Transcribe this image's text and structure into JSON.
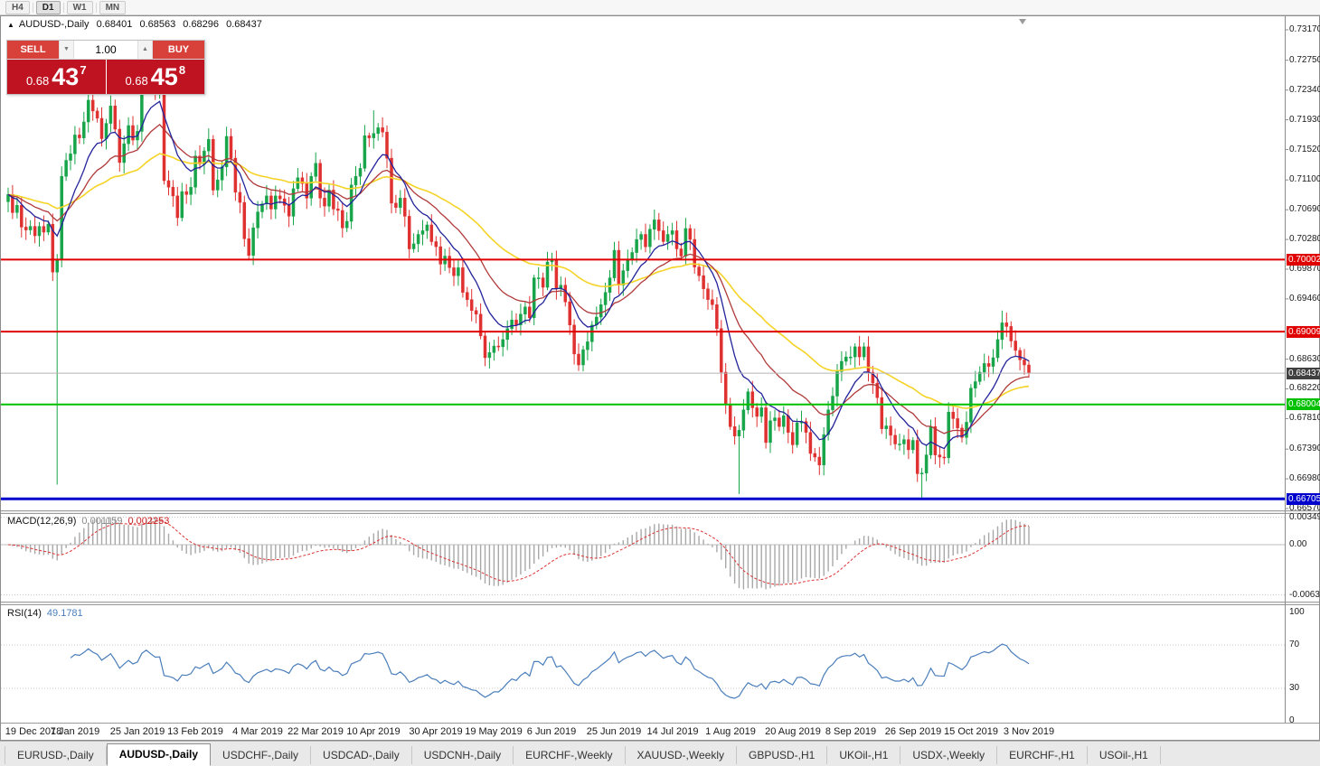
{
  "toolbar": {
    "timeframes": [
      "H4",
      "D1",
      "W1",
      "MN"
    ],
    "active": "D1"
  },
  "header": {
    "arrow": "▲",
    "symbol": "AUDUSD-,Daily",
    "open": "0.68401",
    "high": "0.68563",
    "low": "0.68296",
    "close": "0.68437"
  },
  "trade": {
    "sell_label": "SELL",
    "buy_label": "BUY",
    "lot": "1.00",
    "spin_down": "▼",
    "spin_up": "▲",
    "bid": {
      "prefix": "0.68",
      "big": "43",
      "sup": "7"
    },
    "ask": {
      "prefix": "0.68",
      "big": "45",
      "sup": "8"
    }
  },
  "macd": {
    "title": "MACD(12,26,9)",
    "v1": "0.001159",
    "v2": "0.002253"
  },
  "rsi": {
    "title": "RSI(14)",
    "value": "49.1781"
  },
  "tabs": [
    {
      "label": "EURUSD-,Daily",
      "active": false
    },
    {
      "label": "AUDUSD-,Daily",
      "active": true
    },
    {
      "label": "USDCHF-,Daily",
      "active": false
    },
    {
      "label": "USDCAD-,Daily",
      "active": false
    },
    {
      "label": "USDCNH-,Daily",
      "active": false
    },
    {
      "label": "EURCHF-,Weekly",
      "active": false
    },
    {
      "label": "XAUUSD-,Weekly",
      "active": false
    },
    {
      "label": "GBPUSD-,H1",
      "active": false
    },
    {
      "label": "UKOil-,H1",
      "active": false
    },
    {
      "label": "USDX-,Weekly",
      "active": false
    },
    {
      "label": "EURCHF-,H1",
      "active": false
    },
    {
      "label": "USOil-,H1",
      "active": false
    }
  ],
  "chart_data": {
    "type": "candlestick",
    "title": "AUDUSD- Daily",
    "symbol": "AUDUSD-",
    "timeframe": "Daily",
    "ohlc_display": {
      "open": 0.68401,
      "high": 0.68563,
      "low": 0.68296,
      "close": 0.68437
    },
    "y_range": {
      "top": 0.7317,
      "bottom": 0.6657
    },
    "first_open": 0.708,
    "closes": [
      0.709,
      0.7065,
      0.7075,
      0.7045,
      0.7041,
      0.7046,
      0.7033,
      0.7046,
      0.7038,
      0.7049,
      0.6983,
      0.7,
      0.7115,
      0.7137,
      0.7146,
      0.7172,
      0.7168,
      0.719,
      0.722,
      0.7205,
      0.7195,
      0.7167,
      0.7188,
      0.7212,
      0.718,
      0.7134,
      0.716,
      0.7185,
      0.7165,
      0.7177,
      0.7243,
      0.7272,
      0.7253,
      0.7235,
      0.7237,
      0.7109,
      0.71,
      0.7088,
      0.7058,
      0.7094,
      0.709,
      0.71,
      0.7143,
      0.7132,
      0.715,
      0.7166,
      0.7096,
      0.711,
      0.7128,
      0.717,
      0.714,
      0.7093,
      0.7079,
      0.7029,
      0.7006,
      0.7044,
      0.7066,
      0.7077,
      0.7088,
      0.707,
      0.7088,
      0.7084,
      0.7075,
      0.706,
      0.7098,
      0.7113,
      0.7105,
      0.7085,
      0.7115,
      0.7133,
      0.7085,
      0.7074,
      0.7096,
      0.707,
      0.7068,
      0.7044,
      0.7053,
      0.7103,
      0.7115,
      0.7126,
      0.7171,
      0.7168,
      0.7174,
      0.7182,
      0.7176,
      0.714,
      0.7078,
      0.7072,
      0.7085,
      0.706,
      0.7015,
      0.7022,
      0.7035,
      0.704,
      0.7048,
      0.7025,
      0.7018,
      0.6994,
      0.7005,
      0.6989,
      0.6978,
      0.6989,
      0.6955,
      0.6945,
      0.693,
      0.6925,
      0.6895,
      0.6865,
      0.6872,
      0.6881,
      0.688,
      0.689,
      0.6905,
      0.6917,
      0.691,
      0.6925,
      0.6935,
      0.692,
      0.6975,
      0.6975,
      0.6962,
      0.6997,
      0.7,
      0.696,
      0.6965,
      0.6942,
      0.691,
      0.687,
      0.6855,
      0.6876,
      0.6887,
      0.691,
      0.6921,
      0.6938,
      0.6955,
      0.6975,
      0.7013,
      0.6965,
      0.6985,
      0.7,
      0.701,
      0.7028,
      0.7035,
      0.7018,
      0.7042,
      0.7055,
      0.704,
      0.7025,
      0.7035,
      0.704,
      0.7015,
      0.7005,
      0.7043,
      0.7028,
      0.699,
      0.6978,
      0.696,
      0.6945,
      0.6938,
      0.6905,
      0.6845,
      0.68,
      0.677,
      0.6757,
      0.6765,
      0.6793,
      0.6818,
      0.6796,
      0.6784,
      0.6796,
      0.6748,
      0.6778,
      0.6782,
      0.677,
      0.6785,
      0.6762,
      0.6745,
      0.6775,
      0.6777,
      0.6762,
      0.6733,
      0.6728,
      0.6717,
      0.6759,
      0.6793,
      0.6812,
      0.6846,
      0.686,
      0.6866,
      0.6866,
      0.688,
      0.6866,
      0.688,
      0.6845,
      0.683,
      0.681,
      0.6767,
      0.6771,
      0.6758,
      0.6746,
      0.6746,
      0.6752,
      0.6738,
      0.6751,
      0.6705,
      0.6706,
      0.6731,
      0.677,
      0.6731,
      0.6728,
      0.6727,
      0.679,
      0.6781,
      0.6768,
      0.6755,
      0.6776,
      0.6823,
      0.6832,
      0.6845,
      0.6857,
      0.6853,
      0.6865,
      0.689,
      0.6913,
      0.6908,
      0.6888,
      0.6875,
      0.6862,
      0.6855,
      0.68437
    ],
    "wick_overrides": [
      {
        "i": 11,
        "low": 0.669
      },
      {
        "i": 82,
        "high": 0.7206
      },
      {
        "i": 164,
        "low": 0.6677
      },
      {
        "i": 205,
        "low": 0.667
      },
      {
        "i": 223,
        "high": 0.693
      }
    ],
    "candle_colors": {
      "up": "#18a54a",
      "down": "#e03131"
    },
    "moving_averages": [
      {
        "period": 10,
        "color": "#23239b",
        "width": 1.3
      },
      {
        "period": 22,
        "color": "#b03a3a",
        "width": 1.3
      },
      {
        "period": 50,
        "color": "#f5d327",
        "width": 1.6
      }
    ],
    "levels": [
      {
        "price": 0.70002,
        "color": "#e00000",
        "width": 2,
        "label": "0.70002",
        "label_bg": "#e00000"
      },
      {
        "price": 0.69009,
        "color": "#e00000",
        "width": 2,
        "label": "0.69009",
        "label_bg": "#e00000"
      },
      {
        "price": 0.68437,
        "color": "#b4b4b4",
        "width": 1,
        "label": "0.68437",
        "label_bg": "#404040"
      },
      {
        "price": 0.68004,
        "color": "#00c000",
        "width": 2,
        "label": "0.68004",
        "label_bg": "#00c000"
      },
      {
        "price": 0.66705,
        "color": "#0000cd",
        "width": 3,
        "label": "0.66705",
        "label_bg": "#0000cd"
      }
    ],
    "y_ticks": [
      "0.73170",
      "0.72750",
      "0.72340",
      "0.71930",
      "0.71520",
      "0.71100",
      "0.70690",
      "0.70280",
      "0.69870",
      "0.69460",
      "0.68630",
      "0.68220",
      "0.67810",
      "0.67390",
      "0.66980",
      "0.66570"
    ],
    "x_labels": [
      {
        "text": "19 Dec 2018",
        "i": 2
      },
      {
        "text": "7 Jan 2019",
        "i": 15
      },
      {
        "text": "25 Jan 2019",
        "i": 29
      },
      {
        "text": "13 Feb 2019",
        "i": 42
      },
      {
        "text": "4 Mar 2019",
        "i": 56
      },
      {
        "text": "22 Mar 2019",
        "i": 69
      },
      {
        "text": "10 Apr 2019",
        "i": 82
      },
      {
        "text": "30 Apr 2019",
        "i": 96
      },
      {
        "text": "19 May 2019",
        "i": 109
      },
      {
        "text": "6 Jun 2019",
        "i": 122
      },
      {
        "text": "25 Jun 2019",
        "i": 136
      },
      {
        "text": "14 Jul 2019",
        "i": 149
      },
      {
        "text": "1 Aug 2019",
        "i": 162
      },
      {
        "text": "20 Aug 2019",
        "i": 176
      },
      {
        "text": "8 Sep 2019",
        "i": 189
      },
      {
        "text": "26 Sep 2019",
        "i": 203
      },
      {
        "text": "15 Oct 2019",
        "i": 216
      },
      {
        "text": "3 Nov 2019",
        "i": 229
      }
    ],
    "macd": {
      "params": [
        12,
        26,
        9
      ],
      "axis": [
        {
          "v": 0.00349,
          "text": "0.00349"
        },
        {
          "v": 0,
          "text": "0.00"
        },
        {
          "v": -0.00637,
          "text": "-0.00637"
        }
      ]
    },
    "rsi": {
      "period": 14,
      "levels": [
        70,
        30
      ],
      "axis": [
        {
          "v": 100,
          "text": "100"
        },
        {
          "v": 70,
          "text": "70"
        },
        {
          "v": 30,
          "text": "30"
        },
        {
          "v": 0,
          "text": "0"
        }
      ]
    }
  }
}
